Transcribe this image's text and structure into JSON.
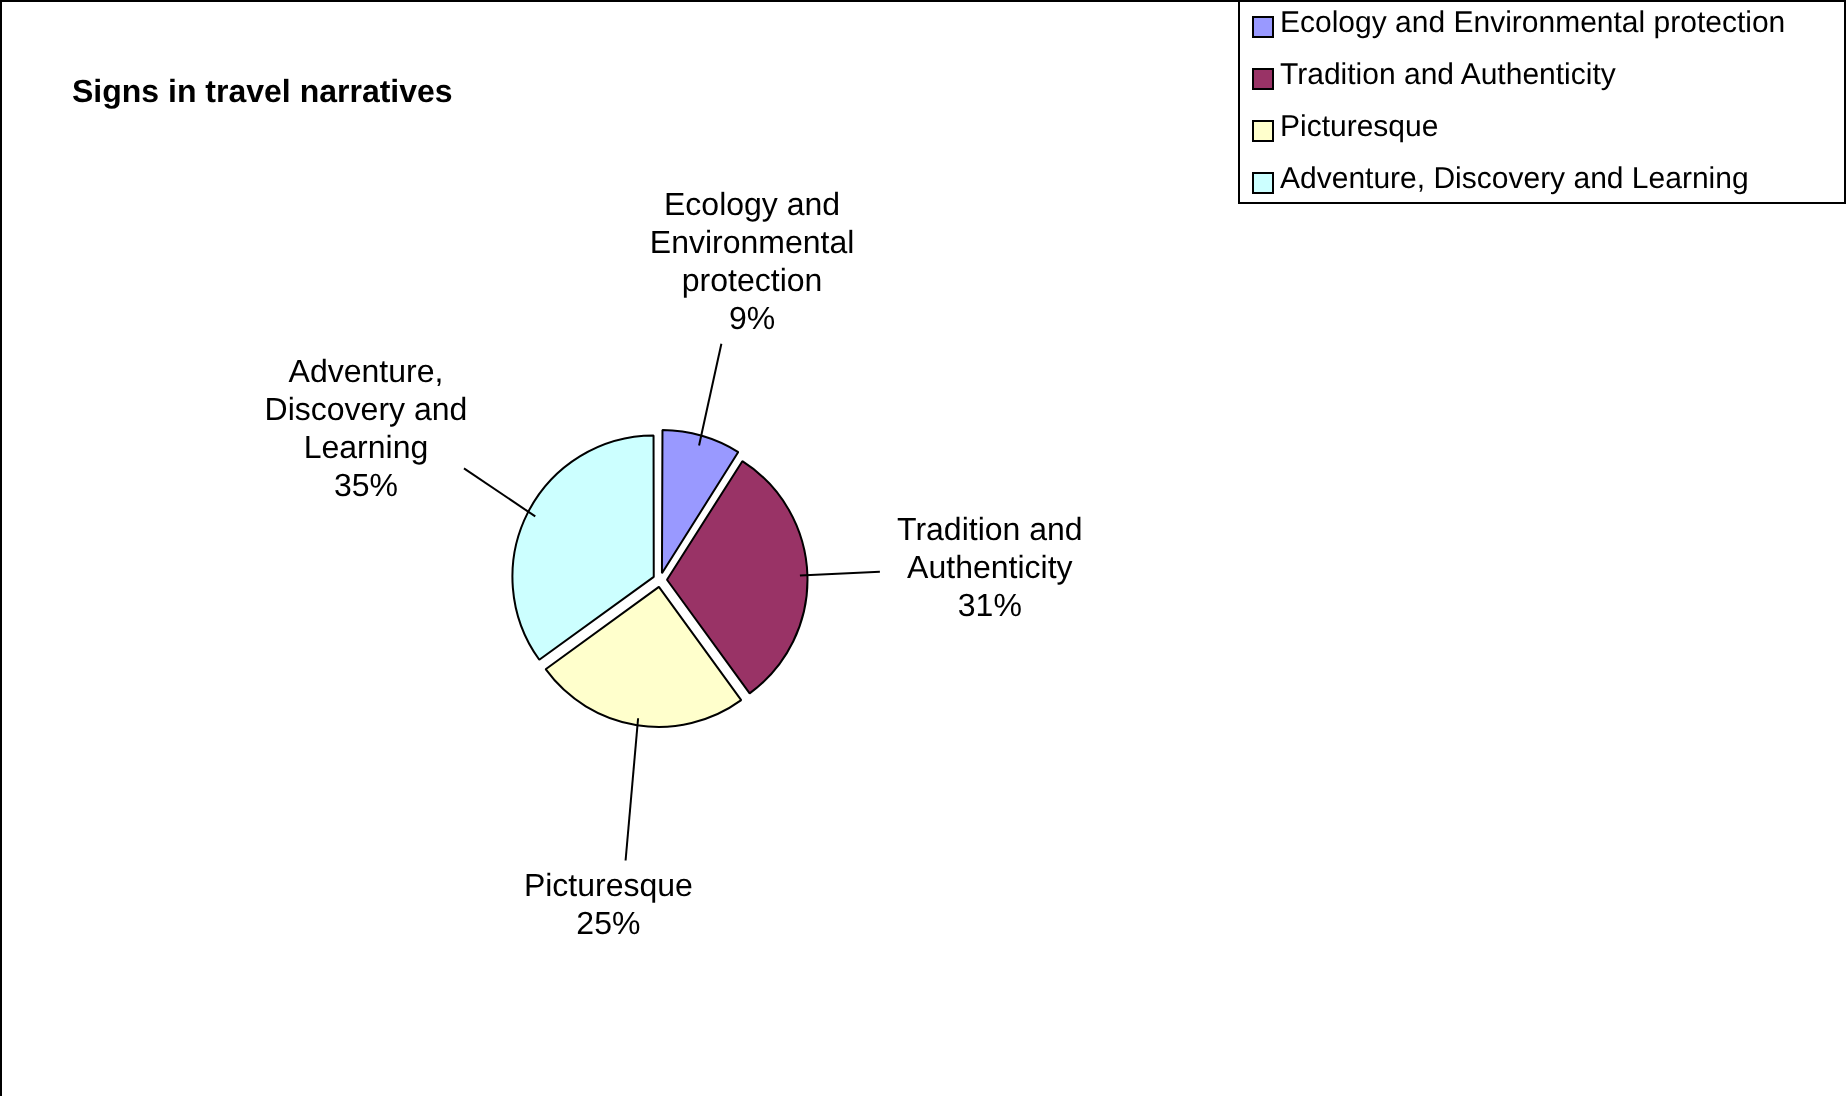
{
  "chart_data": {
    "type": "pie",
    "title": "Signs in travel narratives",
    "categories": [
      "Ecology and Environmental protection",
      "Tradition and Authenticity",
      "Picturesque",
      "Adventure, Discovery and Learning"
    ],
    "values": [
      9,
      31,
      25,
      35
    ],
    "colors": [
      "#9999ff",
      "#993366",
      "#ffffcc",
      "#ccffff"
    ],
    "value_labels": [
      "9%",
      "31%",
      "25%",
      "35%"
    ],
    "legend": "top right"
  }
}
